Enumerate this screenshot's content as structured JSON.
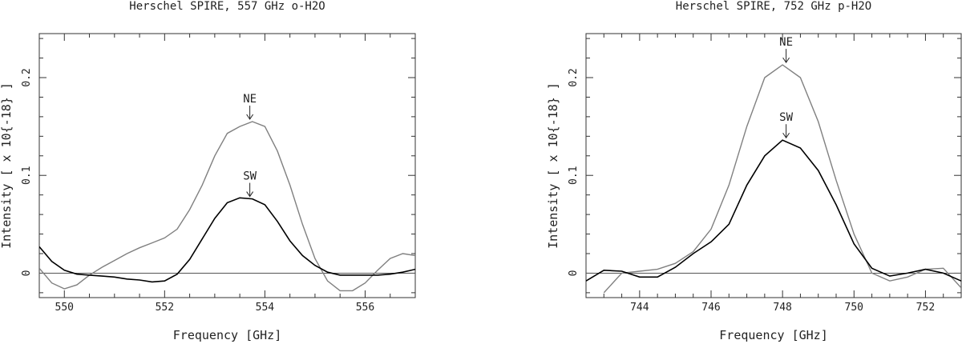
{
  "chart_data": [
    {
      "type": "line",
      "title": "Herschel SPIRE, 557 GHz o-H2O",
      "xlabel": "Frequency   [GHz]",
      "ylabel": "Intensity [ x 10{-18} ]",
      "xlim": [
        549.5,
        557.0
      ],
      "ylim": [
        -0.025,
        0.245
      ],
      "xticks": [
        550,
        552,
        554,
        556
      ],
      "xtick_labels": [
        "550",
        "552",
        "554",
        "556"
      ],
      "yticks": [
        0,
        0.1,
        0.2
      ],
      "ytick_labels": [
        "0",
        "0.1",
        "0.2"
      ],
      "baseline": 0,
      "grid": false,
      "series": [
        {
          "name": "NE",
          "color": "#808080",
          "x": [
            549.5,
            549.75,
            550.0,
            550.25,
            550.5,
            550.75,
            551.0,
            551.25,
            551.5,
            551.75,
            552.0,
            552.25,
            552.5,
            552.75,
            553.0,
            553.25,
            553.5,
            553.75,
            554.0,
            554.25,
            554.5,
            554.75,
            555.0,
            555.25,
            555.5,
            555.75,
            556.0,
            556.25,
            556.5,
            556.75,
            557.0
          ],
          "y": [
            0.005,
            -0.01,
            -0.016,
            -0.012,
            -0.002,
            0.006,
            0.013,
            0.02,
            0.026,
            0.031,
            0.036,
            0.045,
            0.065,
            0.09,
            0.12,
            0.143,
            0.15,
            0.155,
            0.15,
            0.125,
            0.09,
            0.05,
            0.015,
            -0.008,
            -0.018,
            -0.018,
            -0.01,
            0.003,
            0.015,
            0.02,
            0.018
          ]
        },
        {
          "name": "SW",
          "color": "#000000",
          "x": [
            549.5,
            549.75,
            550.0,
            550.25,
            550.5,
            550.75,
            551.0,
            551.25,
            551.5,
            551.75,
            552.0,
            552.25,
            552.5,
            552.75,
            553.0,
            553.25,
            553.5,
            553.75,
            554.0,
            554.25,
            554.5,
            554.75,
            555.0,
            555.25,
            555.5,
            555.75,
            556.0,
            556.25,
            556.5,
            556.75,
            557.0
          ],
          "y": [
            0.027,
            0.012,
            0.003,
            -0.001,
            -0.002,
            -0.003,
            -0.004,
            -0.006,
            -0.007,
            -0.009,
            -0.008,
            -0.001,
            0.014,
            0.035,
            0.056,
            0.072,
            0.077,
            0.076,
            0.07,
            0.053,
            0.033,
            0.018,
            0.008,
            0.001,
            -0.002,
            -0.002,
            -0.002,
            -0.002,
            -0.001,
            0.001,
            0.004
          ]
        }
      ],
      "annotations": [
        {
          "text": "NE",
          "x": 553.7,
          "y": 0.155
        },
        {
          "text": "SW",
          "x": 553.7,
          "y": 0.076
        }
      ]
    },
    {
      "type": "line",
      "title": "Herschel SPIRE, 752 GHz p-H2O",
      "xlabel": "Frequency   [GHz]",
      "ylabel": "Intensity [ x 10{-18} ]",
      "xlim": [
        742.5,
        753.0
      ],
      "ylim": [
        -0.025,
        0.245
      ],
      "xticks": [
        744,
        746,
        748,
        750,
        752
      ],
      "xtick_labels": [
        "744",
        "746",
        "748",
        "750",
        "752"
      ],
      "yticks": [
        0,
        0.1,
        0.2
      ],
      "ytick_labels": [
        "0",
        "0.1",
        "0.2"
      ],
      "baseline": 0,
      "grid": false,
      "series": [
        {
          "name": "NE",
          "color": "#808080",
          "x": [
            743.0,
            743.5,
            744.0,
            744.5,
            745.0,
            745.5,
            746.0,
            746.5,
            747.0,
            747.5,
            748.0,
            748.5,
            749.0,
            749.5,
            750.0,
            750.5,
            751.0,
            751.5,
            752.0,
            752.5,
            753.0
          ],
          "y": [
            -0.02,
            0.0,
            0.002,
            0.004,
            0.01,
            0.022,
            0.045,
            0.09,
            0.15,
            0.2,
            0.213,
            0.2,
            0.155,
            0.095,
            0.04,
            0.0,
            -0.008,
            -0.004,
            0.004,
            0.005,
            -0.015
          ]
        },
        {
          "name": "SW",
          "color": "#000000",
          "x": [
            742.5,
            743.0,
            743.5,
            744.0,
            744.5,
            745.0,
            745.5,
            746.0,
            746.5,
            747.0,
            747.5,
            748.0,
            748.5,
            749.0,
            749.5,
            750.0,
            750.5,
            751.0,
            751.5,
            752.0,
            752.5,
            753.0
          ],
          "y": [
            -0.008,
            0.003,
            0.002,
            -0.004,
            -0.004,
            0.006,
            0.02,
            0.032,
            0.05,
            0.09,
            0.12,
            0.136,
            0.128,
            0.105,
            0.07,
            0.03,
            0.005,
            -0.003,
            0.0,
            0.004,
            0.0,
            -0.008
          ]
        }
      ],
      "annotations": [
        {
          "text": "NE",
          "x": 748.1,
          "y": 0.213
        },
        {
          "text": "SW",
          "x": 748.1,
          "y": 0.136
        }
      ]
    }
  ]
}
